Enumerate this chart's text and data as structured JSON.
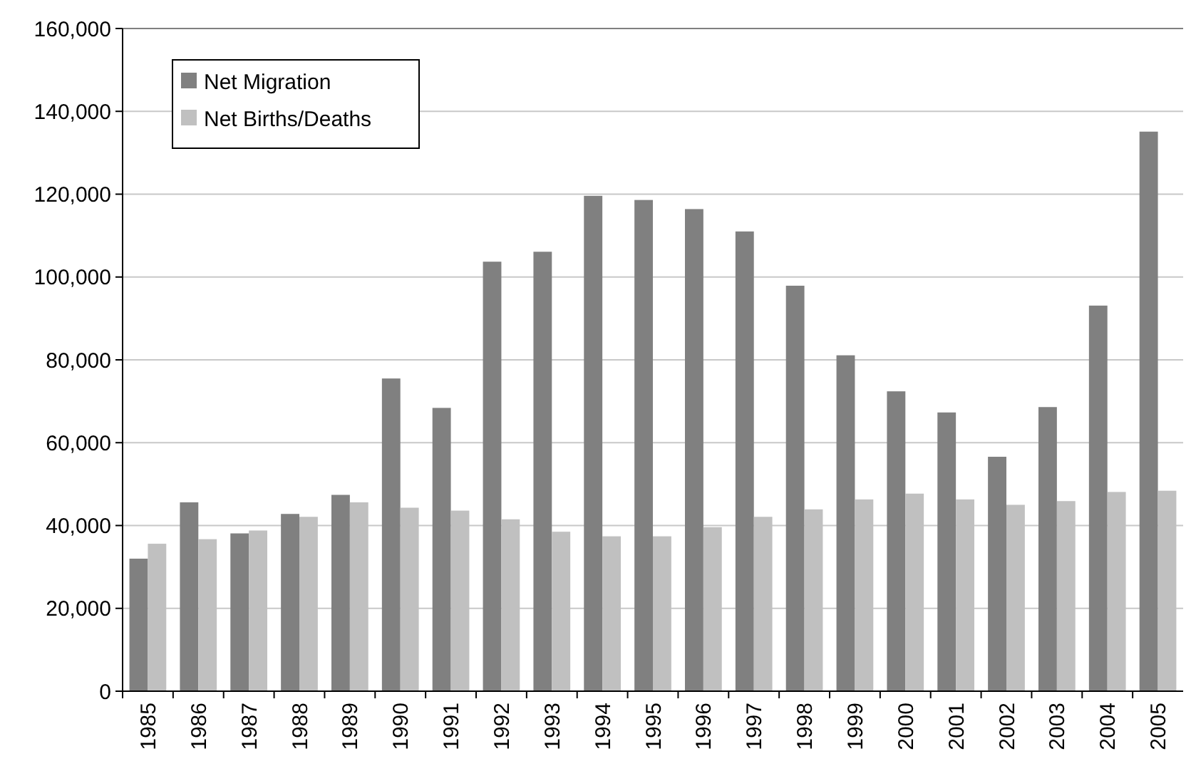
{
  "chart_data": {
    "type": "bar",
    "categories": [
      "1985",
      "1986",
      "1987",
      "1988",
      "1989",
      "1990",
      "1991",
      "1992",
      "1993",
      "1994",
      "1995",
      "1996",
      "1997",
      "1998",
      "1999",
      "2000",
      "2001",
      "2002",
      "2003",
      "2004",
      "2005"
    ],
    "series": [
      {
        "name": "Net Migration",
        "color": "#808080",
        "values": [
          32000,
          45600,
          38100,
          42800,
          47400,
          75500,
          68400,
          103700,
          106100,
          119600,
          118600,
          116400,
          111000,
          97900,
          81100,
          72400,
          67300,
          56600,
          68600,
          93100,
          135100
        ]
      },
      {
        "name": "Net Births/Deaths",
        "color": "#c0c0c0",
        "values": [
          35600,
          36700,
          38800,
          42100,
          45600,
          44300,
          43600,
          41500,
          38500,
          37400,
          37400,
          39600,
          42100,
          43900,
          46300,
          47700,
          46300,
          45000,
          45900,
          48100,
          48400
        ]
      }
    ],
    "ylim": [
      0,
      160000
    ],
    "yticks": [
      0,
      {
        "value": 20000,
        "label": "20,000"
      },
      {
        "value": 40000,
        "label": "40,000"
      },
      {
        "value": 60000,
        "label": "60,000"
      },
      {
        "value": 80000,
        "label": "80,000"
      },
      {
        "value": 100000,
        "label": "100,000"
      },
      {
        "value": 120000,
        "label": "120,000"
      },
      {
        "value": 140000,
        "label": "140,000"
      },
      {
        "value": 160000,
        "label": "160,000"
      }
    ],
    "grid": "y",
    "legend": "top left"
  }
}
